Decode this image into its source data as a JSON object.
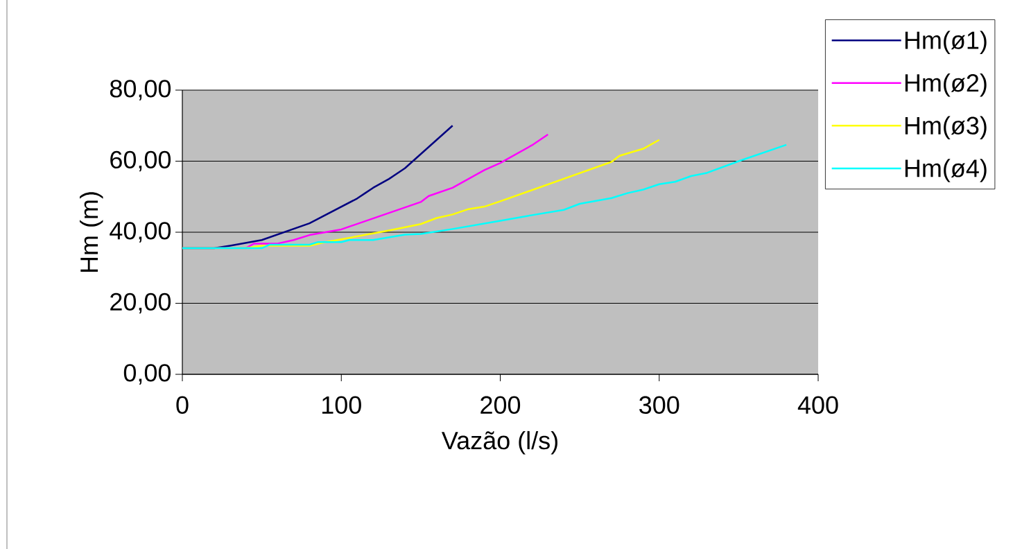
{
  "chart_data": {
    "type": "line",
    "xlabel": "Vazão (l/s)",
    "ylabel": "Hm  (m)",
    "xlim": [
      0,
      400
    ],
    "xticks": [
      0,
      100,
      200,
      300,
      400
    ],
    "ylim": [
      0,
      80
    ],
    "yticks": [
      {
        "value": 0,
        "label": "0,00"
      },
      {
        "value": 20,
        "label": "20,00"
      },
      {
        "value": 40,
        "label": "40,00"
      },
      {
        "value": 60,
        "label": "60,00"
      },
      {
        "value": 80,
        "label": "80,00"
      }
    ],
    "grid": "y",
    "legend": "top right",
    "marker": "none",
    "line_style": "solid",
    "series": [
      {
        "name": "Hm(ø1)",
        "color": "#000080",
        "x": [
          0,
          20,
          30,
          50,
          80,
          110,
          115,
          120,
          130,
          140,
          150,
          160,
          170
        ],
        "values": [
          35.5,
          35.5,
          36.2,
          37.8,
          42.5,
          49.5,
          51,
          52.5,
          55,
          58,
          62,
          66,
          70
        ]
      },
      {
        "name": "Hm(ø2)",
        "color": "#ff00ff",
        "x": [
          0,
          40,
          45,
          60,
          70,
          80,
          100,
          150,
          155,
          170,
          190,
          200,
          220,
          230
        ],
        "values": [
          35.5,
          35.5,
          36.8,
          36.8,
          37.8,
          39.2,
          40.8,
          48.5,
          50.2,
          52.5,
          57.5,
          59.5,
          64.5,
          67.5
        ]
      },
      {
        "name": "Hm(ø3)",
        "color": "#ffff00",
        "x": [
          0,
          40,
          50,
          80,
          90,
          100,
          130,
          150,
          160,
          170,
          180,
          190,
          200,
          270,
          275,
          290,
          300
        ],
        "values": [
          35.5,
          35.5,
          36.2,
          36.2,
          37.2,
          38,
          40.5,
          42.3,
          44,
          45,
          46.5,
          47.2,
          48.7,
          59.8,
          61.5,
          63.5,
          66
        ]
      },
      {
        "name": "Hm(ø4)",
        "color": "#00ffff",
        "x": [
          0,
          50,
          55,
          80,
          85,
          100,
          105,
          120,
          140,
          150,
          170,
          200,
          220,
          240,
          250,
          270,
          280,
          290,
          300,
          310,
          320,
          330,
          350,
          380
        ],
        "values": [
          35.5,
          35.5,
          36.5,
          36.5,
          37.2,
          37.2,
          37.8,
          37.8,
          39.3,
          39.5,
          40.9,
          43.2,
          44.8,
          46.3,
          48,
          49.6,
          51,
          52,
          53.5,
          54.2,
          55.8,
          56.7,
          60,
          64.6
        ]
      }
    ]
  }
}
